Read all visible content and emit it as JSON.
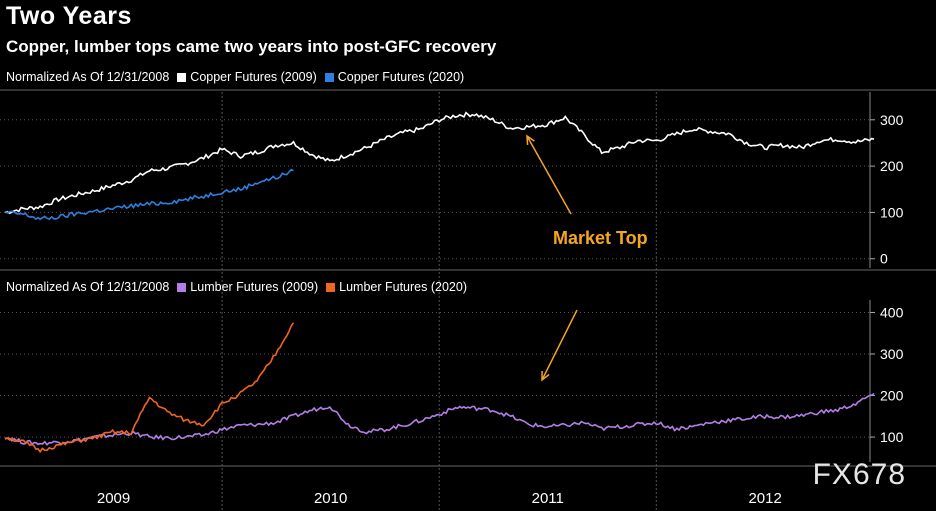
{
  "title": "Two Years",
  "subtitle": "Copper, lumber tops came two years into post-GFC recovery",
  "colors": {
    "copper_2009": "#ffffff",
    "copper_2020": "#2f7fe0",
    "lumber_2009": "#b57ee6",
    "lumber_2020": "#f2651f",
    "annotation": "#f5a623"
  },
  "legends": {
    "top": {
      "prefix": "Normalized As Of 12/31/2008",
      "items": [
        "Copper Futures (2009)",
        "Copper Futures (2020)"
      ]
    },
    "bottom": {
      "prefix": "Normalized As Of 12/31/2008",
      "items": [
        "Lumber Futures (2009)",
        "Lumber Futures (2020)"
      ]
    }
  },
  "annotation": {
    "label": "Market Top"
  },
  "watermark": "FX678",
  "chart_data": [
    {
      "type": "line",
      "title": "",
      "xlabel": "",
      "ylabel": "",
      "x_ticks": [
        "2009",
        "2010",
        "2011",
        "2012"
      ],
      "y_ticks": [
        0,
        100,
        200,
        300
      ],
      "ylim": [
        -20,
        360
      ],
      "xlim": [
        "2008-12-31",
        "2012-12-31"
      ],
      "legend_position": "top-left",
      "grid": "vertical dashed",
      "series": [
        {
          "name": "Copper Futures (2009)",
          "color": "copper_2009",
          "x": [
            "2008-12-31",
            "2009-01-31",
            "2009-02-28",
            "2009-03-31",
            "2009-04-30",
            "2009-05-31",
            "2009-06-30",
            "2009-07-31",
            "2009-08-31",
            "2009-09-30",
            "2009-10-31",
            "2009-11-30",
            "2009-12-31",
            "2010-01-31",
            "2010-02-28",
            "2010-03-31",
            "2010-04-30",
            "2010-05-31",
            "2010-06-30",
            "2010-07-31",
            "2010-08-31",
            "2010-09-30",
            "2010-10-31",
            "2010-11-30",
            "2010-12-31",
            "2011-01-31",
            "2011-02-28",
            "2011-03-31",
            "2011-04-30",
            "2011-05-31",
            "2011-06-30",
            "2011-07-31",
            "2011-08-31",
            "2011-09-30",
            "2011-10-31",
            "2011-11-30",
            "2011-12-31",
            "2012-01-31",
            "2012-02-29",
            "2012-03-31",
            "2012-04-30",
            "2012-05-31",
            "2012-06-30",
            "2012-07-31",
            "2012-08-31",
            "2012-09-30",
            "2012-10-31",
            "2012-11-30",
            "2012-12-31"
          ],
          "values": [
            100,
            108,
            112,
            128,
            138,
            147,
            158,
            170,
            190,
            195,
            205,
            218,
            236,
            222,
            230,
            245,
            250,
            225,
            210,
            225,
            240,
            258,
            272,
            280,
            300,
            310,
            312,
            300,
            282,
            285,
            290,
            305,
            268,
            230,
            240,
            255,
            255,
            268,
            280,
            275,
            270,
            250,
            240,
            245,
            240,
            255,
            258,
            252,
            258
          ]
        },
        {
          "name": "Copper Futures (2020)",
          "color": "copper_2020",
          "x": [
            "2008-12-31",
            "2009-01-31",
            "2009-02-28",
            "2009-03-31",
            "2009-04-30",
            "2009-05-31",
            "2009-06-30",
            "2009-07-31",
            "2009-08-31",
            "2009-09-30",
            "2009-10-31",
            "2009-11-30",
            "2009-12-31",
            "2010-01-31",
            "2010-02-28",
            "2010-03-31",
            "2010-04-30"
          ],
          "values": [
            100,
            96,
            86,
            90,
            97,
            103,
            108,
            114,
            118,
            122,
            128,
            135,
            145,
            150,
            165,
            175,
            190
          ]
        }
      ]
    },
    {
      "type": "line",
      "title": "",
      "xlabel": "",
      "ylabel": "",
      "x_ticks": [
        "2009",
        "2010",
        "2011",
        "2012"
      ],
      "y_ticks": [
        100,
        200,
        300,
        400
      ],
      "ylim": [
        40,
        430
      ],
      "xlim": [
        "2008-12-31",
        "2012-12-31"
      ],
      "legend_position": "top-left",
      "grid": "vertical dashed",
      "series": [
        {
          "name": "Lumber Futures (2009)",
          "color": "lumber_2009",
          "x": [
            "2008-12-31",
            "2009-01-31",
            "2009-02-28",
            "2009-03-31",
            "2009-04-30",
            "2009-05-31",
            "2009-06-30",
            "2009-07-31",
            "2009-08-31",
            "2009-09-30",
            "2009-10-31",
            "2009-11-30",
            "2009-12-31",
            "2010-01-31",
            "2010-02-28",
            "2010-03-31",
            "2010-04-30",
            "2010-05-31",
            "2010-06-30",
            "2010-07-31",
            "2010-08-31",
            "2010-09-30",
            "2010-10-31",
            "2010-11-30",
            "2010-12-31",
            "2011-01-31",
            "2011-02-28",
            "2011-03-31",
            "2011-04-30",
            "2011-05-31",
            "2011-06-30",
            "2011-07-31",
            "2011-08-31",
            "2011-09-30",
            "2011-10-31",
            "2011-11-30",
            "2011-12-31",
            "2012-01-31",
            "2012-02-29",
            "2012-03-31",
            "2012-04-30",
            "2012-05-31",
            "2012-06-30",
            "2012-07-31",
            "2012-08-31",
            "2012-09-30",
            "2012-10-31",
            "2012-11-30",
            "2012-12-31"
          ],
          "values": [
            100,
            88,
            85,
            88,
            92,
            100,
            105,
            110,
            100,
            98,
            100,
            105,
            118,
            128,
            130,
            135,
            150,
            165,
            175,
            130,
            112,
            118,
            128,
            140,
            155,
            172,
            170,
            165,
            150,
            130,
            125,
            128,
            135,
            120,
            125,
            130,
            135,
            120,
            125,
            135,
            140,
            145,
            150,
            148,
            152,
            160,
            165,
            180,
            205
          ]
        },
        {
          "name": "Lumber Futures (2020)",
          "color": "lumber_2020",
          "x": [
            "2008-12-31",
            "2009-01-31",
            "2009-02-28",
            "2009-03-31",
            "2009-04-30",
            "2009-05-31",
            "2009-06-30",
            "2009-07-31",
            "2009-08-31",
            "2009-09-30",
            "2009-10-31",
            "2009-11-30",
            "2009-12-31",
            "2010-01-31",
            "2010-02-28",
            "2010-03-31",
            "2010-04-30"
          ],
          "values": [
            100,
            88,
            68,
            80,
            90,
            98,
            112,
            110,
            195,
            160,
            140,
            130,
            180,
            205,
            235,
            300,
            375
          ]
        }
      ]
    }
  ]
}
